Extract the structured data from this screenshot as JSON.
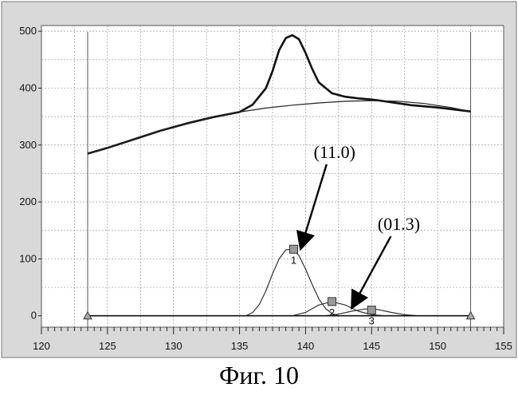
{
  "chart_data": {
    "type": "line",
    "title": "",
    "xlabel": "",
    "ylabel": "",
    "xlim": [
      120,
      155
    ],
    "ylim": [
      -20,
      510
    ],
    "xticks": [
      120,
      125,
      130,
      135,
      140,
      145,
      150,
      155
    ],
    "yticks": [
      0,
      100,
      200,
      300,
      400,
      500
    ],
    "grid": true,
    "series": [
      {
        "x": [
          123.5,
          125,
          127,
          129,
          131,
          133,
          135,
          136,
          137,
          137.5,
          138,
          138.5,
          139,
          139.5,
          140,
          140.5,
          141,
          142,
          143,
          144,
          145,
          146,
          148,
          150,
          152.5
        ],
        "y": [
          285,
          295,
          310,
          325,
          338,
          349,
          358,
          371,
          400,
          430,
          467,
          488,
          493,
          486,
          462,
          434,
          410,
          391,
          385,
          382,
          380,
          377,
          370,
          366,
          359
        ]
      },
      {
        "x": [
          123.5,
          125,
          127,
          129,
          131,
          133,
          135,
          137,
          139,
          141,
          143,
          145,
          147,
          149,
          151,
          152.5
        ],
        "y": [
          285,
          295,
          310,
          325,
          338,
          349,
          358,
          365,
          370,
          374,
          377,
          378,
          377,
          373,
          366,
          359
        ]
      },
      {
        "x": [
          135.5,
          136,
          136.5,
          137,
          137.5,
          138,
          138.5,
          139,
          139.5,
          140,
          140.5,
          141,
          141.5,
          142,
          142.5
        ],
        "y": [
          0,
          6,
          20,
          44,
          74,
          100,
          116,
          117,
          106,
          82,
          55,
          30,
          13,
          4,
          0
        ]
      },
      {
        "x": [
          139,
          140,
          141,
          142,
          143,
          144,
          145,
          146
        ],
        "y": [
          0,
          6,
          19,
          25,
          19,
          8,
          2,
          0
        ]
      },
      {
        "x": [
          141.5,
          142.5,
          143.5,
          144.5,
          145.5,
          146.5,
          147.5,
          148.5
        ],
        "y": [
          0,
          3,
          8,
          12,
          11,
          6,
          2,
          0
        ]
      },
      {
        "x": [
          123.5,
          152.5
        ],
        "y": [
          0,
          0
        ]
      }
    ],
    "markers": [
      {
        "x": 139.1,
        "y": 117,
        "label": "1"
      },
      {
        "x": 142.0,
        "y": 25,
        "label": "2"
      },
      {
        "x": 145.0,
        "y": 10,
        "label": "3"
      }
    ],
    "endpoints": [
      {
        "x": 123.5,
        "y": 0
      },
      {
        "x": 152.5,
        "y": 0
      }
    ],
    "annotations": [
      {
        "text": "(11.0)",
        "points_to_x": 139.3,
        "points_to_y": 112
      },
      {
        "text": "(01.3)",
        "points_to_x": 143.2,
        "points_to_y": 8
      }
    ],
    "cursor_lines_x": [
      123.5,
      152.5
    ],
    "caption": "Фиг. 10"
  }
}
